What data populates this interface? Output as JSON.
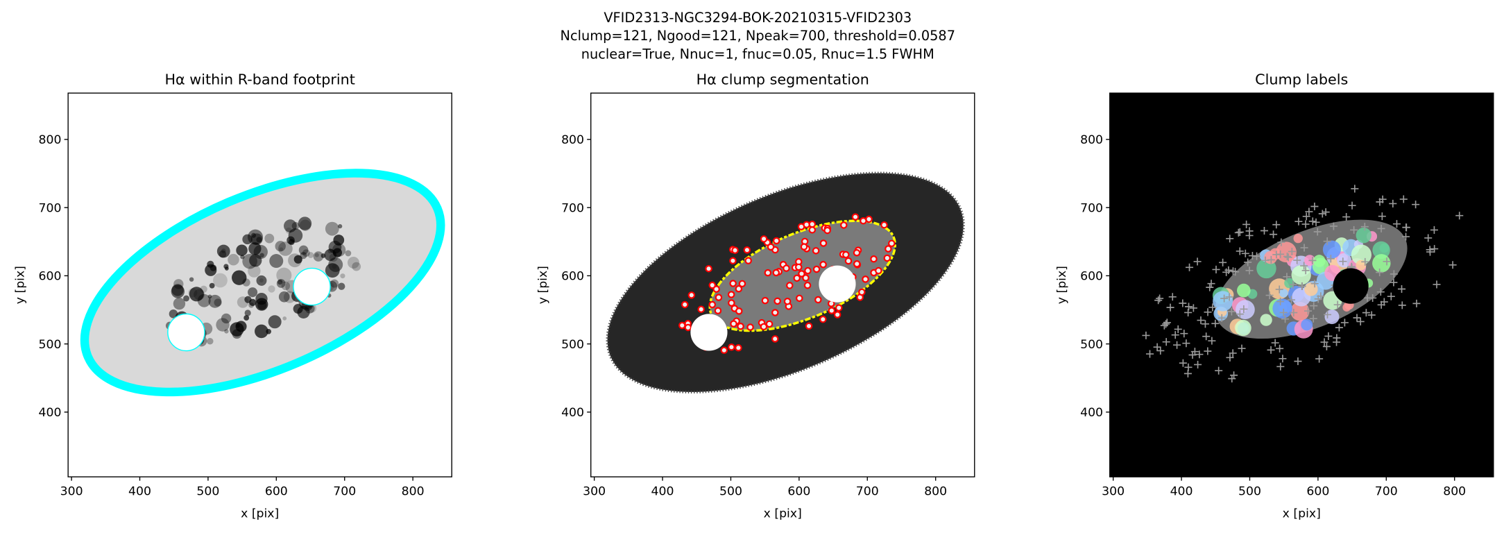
{
  "figure": {
    "title": [
      "VFID2313-NGC3294-BOK-20210315-VFID2303",
      "Nclump=121, Ngood=121, Npeak=700, threshold=0.0587",
      "nuclear=True, Nnuc=1, fnuc=0.05, Rnuc=1.5 FWHM"
    ]
  },
  "chart_data": [
    {
      "type": "image",
      "title": "Hα within R-band footprint",
      "x_label": "x [pix]",
      "y_label": "y [pix]",
      "xlim": [
        295,
        857
      ],
      "ylim": [
        305,
        868
      ],
      "xticks": [
        300,
        400,
        500,
        600,
        700,
        800
      ],
      "yticks": [
        400,
        500,
        600,
        700,
        800
      ]
    },
    {
      "type": "image",
      "title": "Hα clump segmentation",
      "x_label": "x [pix]",
      "y_label": "y [pix]",
      "xlim": [
        295,
        857
      ],
      "ylim": [
        305,
        868
      ],
      "xticks": [
        300,
        400,
        500,
        600,
        700,
        800
      ],
      "yticks": [
        400,
        500,
        600,
        700,
        800
      ]
    },
    {
      "type": "image",
      "title": "Clump labels",
      "x_label": "x [pix]",
      "y_label": "y [pix]",
      "xlim": [
        295,
        857
      ],
      "ylim": [
        305,
        868
      ],
      "xticks": [
        300,
        400,
        500,
        600,
        700,
        800
      ],
      "yticks": [
        400,
        500,
        600,
        700,
        800
      ]
    }
  ]
}
